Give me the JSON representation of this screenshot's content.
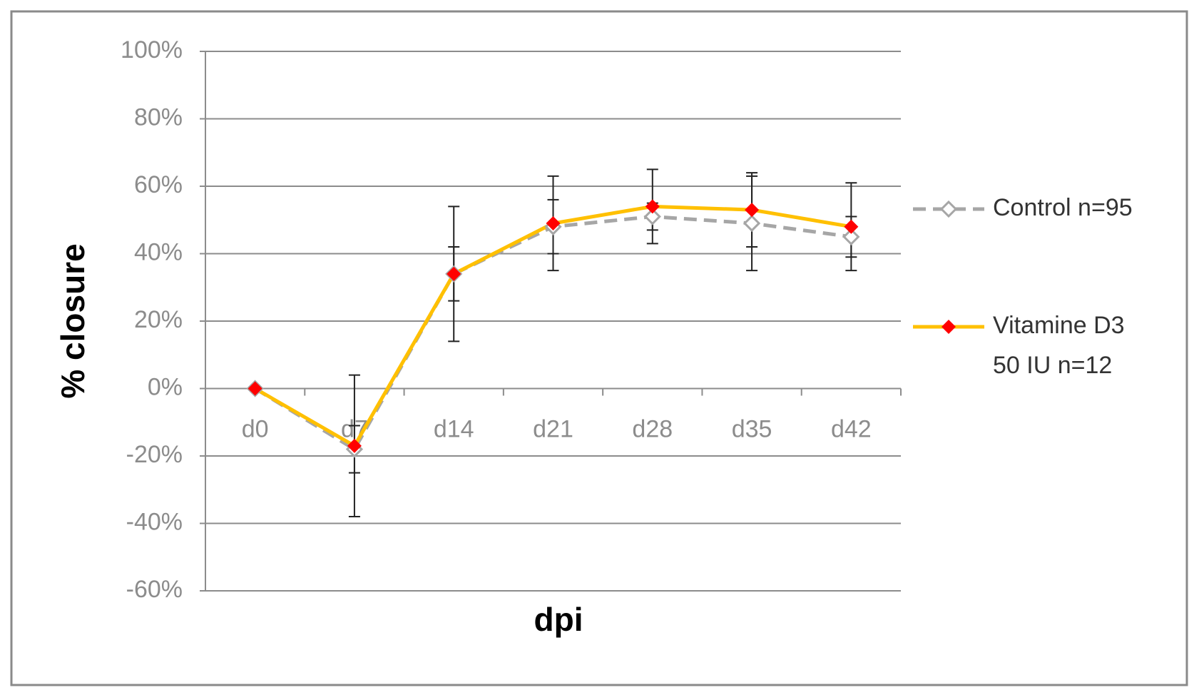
{
  "chart_data": {
    "type": "line",
    "x_label": "dpi",
    "y_label": "% closure",
    "categories": [
      "d0",
      "d7",
      "d14",
      "d21",
      "d28",
      "d35",
      "d42"
    ],
    "series": [
      {
        "name": "Control n=95",
        "color": "#a6a6a6",
        "dashed": true,
        "marker": "diamond-open",
        "values": [
          0,
          -18,
          34,
          48,
          51,
          49,
          45
        ],
        "errors": [
          0,
          7,
          8,
          8,
          4,
          14,
          6
        ]
      },
      {
        "name": "Vitamine D3 50 IU n=12",
        "color": "#ffc000",
        "marker_color": "#ff0000",
        "dashed": false,
        "marker": "diamond",
        "values": [
          0,
          -17,
          34,
          49,
          54,
          53,
          48
        ],
        "errors": [
          0,
          21,
          20,
          14,
          11,
          11,
          13
        ]
      }
    ],
    "ylim": [
      -60,
      100
    ],
    "yticks": [
      {
        "value": -60,
        "label": "-60%"
      },
      {
        "value": -40,
        "label": "-40%"
      },
      {
        "value": -20,
        "label": "-20%"
      },
      {
        "value": 0,
        "label": "0%"
      },
      {
        "value": 20,
        "label": "20%"
      },
      {
        "value": 40,
        "label": "40%"
      },
      {
        "value": 60,
        "label": "60%"
      },
      {
        "value": 80,
        "label": "80%"
      },
      {
        "value": 100,
        "label": "100%"
      }
    ],
    "grid": true,
    "legend_position": "right"
  }
}
